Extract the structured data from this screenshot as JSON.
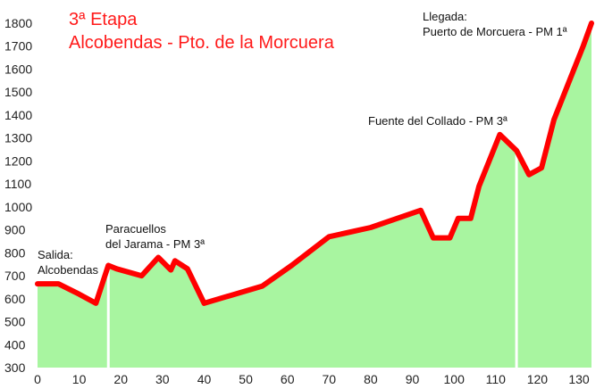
{
  "chart_data": {
    "type": "area",
    "title": "3ª Etapa",
    "subtitle": "Alcobendas - Pto. de la Morcuera",
    "xlabel": "",
    "ylabel": "",
    "xlim": [
      0,
      133
    ],
    "ylim": [
      300,
      1800
    ],
    "grid": false,
    "x_ticks": [
      0,
      10,
      20,
      30,
      40,
      50,
      60,
      70,
      80,
      90,
      100,
      110,
      120,
      130
    ],
    "y_ticks": [
      300,
      400,
      500,
      600,
      700,
      800,
      900,
      1000,
      1100,
      1200,
      1300,
      1400,
      1500,
      1600,
      1700,
      1800
    ],
    "fill_color": "#a8f5a0",
    "line_color": "#ff0000",
    "series": [
      {
        "x": [
          0,
          5,
          10,
          14,
          17,
          19,
          25,
          29,
          32,
          33,
          36,
          40,
          54,
          61,
          70,
          80,
          92,
          95,
          99,
          101,
          104,
          106,
          111,
          115,
          118,
          121,
          124,
          131,
          133
        ],
        "y": [
          665,
          665,
          620,
          580,
          745,
          730,
          700,
          780,
          725,
          765,
          730,
          580,
          655,
          745,
          870,
          910,
          985,
          865,
          865,
          950,
          950,
          1090,
          1315,
          1245,
          1140,
          1170,
          1380,
          1700,
          1800
        ]
      }
    ],
    "annotations": [
      {
        "lines": [
          "Salida:",
          "Alcobendas"
        ],
        "x": 0,
        "y": 665
      },
      {
        "lines": [
          "Paracuellos",
          "del Jarama - PM 3ª"
        ],
        "x": 17,
        "y": 745
      },
      {
        "lines": [
          "Fuente del Collado - PM 3ª"
        ],
        "x": 115,
        "y": 1315
      },
      {
        "lines": [
          "Llegada:",
          "Puerto de Morcuera - PM 1ª"
        ],
        "x": 133,
        "y": 1800
      }
    ],
    "markers_x": [
      17,
      115
    ]
  }
}
